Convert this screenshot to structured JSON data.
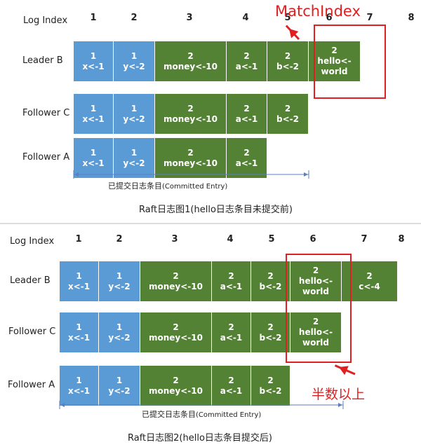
{
  "panels": [
    {
      "log_index_label": "Log Index",
      "indices": [
        "1",
        "2",
        "3",
        "4",
        "5",
        "6",
        "7",
        "8"
      ],
      "rows": [
        {
          "label": "Leader B",
          "entries": [
            {
              "term": "1",
              "cmd": "x<-1",
              "color": "blue"
            },
            {
              "term": "1",
              "cmd": "y<-2",
              "color": "blue"
            },
            {
              "term": "2",
              "cmd": "money<-10",
              "color": "green"
            },
            {
              "term": "2",
              "cmd": "a<-1",
              "color": "green"
            },
            {
              "term": "2",
              "cmd": "b<-2",
              "color": "green"
            },
            {
              "term": "2",
              "cmd": "hello<-\nworld",
              "color": "green"
            }
          ]
        },
        {
          "label": "Follower C",
          "entries": [
            {
              "term": "1",
              "cmd": "x<-1",
              "color": "blue"
            },
            {
              "term": "1",
              "cmd": "y<-2",
              "color": "blue"
            },
            {
              "term": "2",
              "cmd": "money<-10",
              "color": "green"
            },
            {
              "term": "2",
              "cmd": "a<-1",
              "color": "green"
            },
            {
              "term": "2",
              "cmd": "b<-2",
              "color": "green"
            }
          ]
        },
        {
          "label": "Follower A",
          "entries": [
            {
              "term": "1",
              "cmd": "x<-1",
              "color": "blue"
            },
            {
              "term": "1",
              "cmd": "y<-2",
              "color": "blue"
            },
            {
              "term": "2",
              "cmd": "money<-10",
              "color": "green"
            },
            {
              "term": "2",
              "cmd": "a<-1",
              "color": "green"
            }
          ]
        }
      ],
      "annotation": "MatchIndex",
      "committed_zh": "已提交日志条目",
      "committed_en": "(Committed Entry)",
      "caption": "Raft日志图1(hello日志条目未提交前)"
    },
    {
      "log_index_label": "Log Index",
      "indices": [
        "1",
        "2",
        "3",
        "4",
        "5",
        "6",
        "7",
        "8"
      ],
      "rows": [
        {
          "label": "Leader B",
          "entries": [
            {
              "term": "1",
              "cmd": "x<-1",
              "color": "blue"
            },
            {
              "term": "1",
              "cmd": "y<-2",
              "color": "blue"
            },
            {
              "term": "2",
              "cmd": "money<-10",
              "color": "green"
            },
            {
              "term": "2",
              "cmd": "a<-1",
              "color": "green"
            },
            {
              "term": "2",
              "cmd": "b<-2",
              "color": "green"
            },
            {
              "term": "2",
              "cmd": "hello<-\nworld",
              "color": "green"
            },
            {
              "term": "2",
              "cmd": "c<-4",
              "color": "green"
            }
          ]
        },
        {
          "label": "Follower C",
          "entries": [
            {
              "term": "1",
              "cmd": "x<-1",
              "color": "blue"
            },
            {
              "term": "1",
              "cmd": "y<-2",
              "color": "blue"
            },
            {
              "term": "2",
              "cmd": "money<-10",
              "color": "green"
            },
            {
              "term": "2",
              "cmd": "a<-1",
              "color": "green"
            },
            {
              "term": "2",
              "cmd": "b<-2",
              "color": "green"
            },
            {
              "term": "2",
              "cmd": "hello<-\nworld",
              "color": "green"
            }
          ]
        },
        {
          "label": "Follower A",
          "entries": [
            {
              "term": "1",
              "cmd": "x<-1",
              "color": "blue"
            },
            {
              "term": "1",
              "cmd": "y<-2",
              "color": "blue"
            },
            {
              "term": "2",
              "cmd": "money<-10",
              "color": "green"
            },
            {
              "term": "2",
              "cmd": "a<-1",
              "color": "green"
            },
            {
              "term": "2",
              "cmd": "b<-2",
              "color": "green"
            }
          ]
        }
      ],
      "annotation": "半数以上",
      "committed_zh": "已提交日志条目",
      "committed_en": "(Committed Entry)",
      "caption": "Raft日志图2(hello日志条目提交后)"
    }
  ],
  "colors": {
    "blue": "#5b9bd5",
    "green": "#548235",
    "annotation_red": "#e02020",
    "axis_blue": "#5b7fbf"
  }
}
